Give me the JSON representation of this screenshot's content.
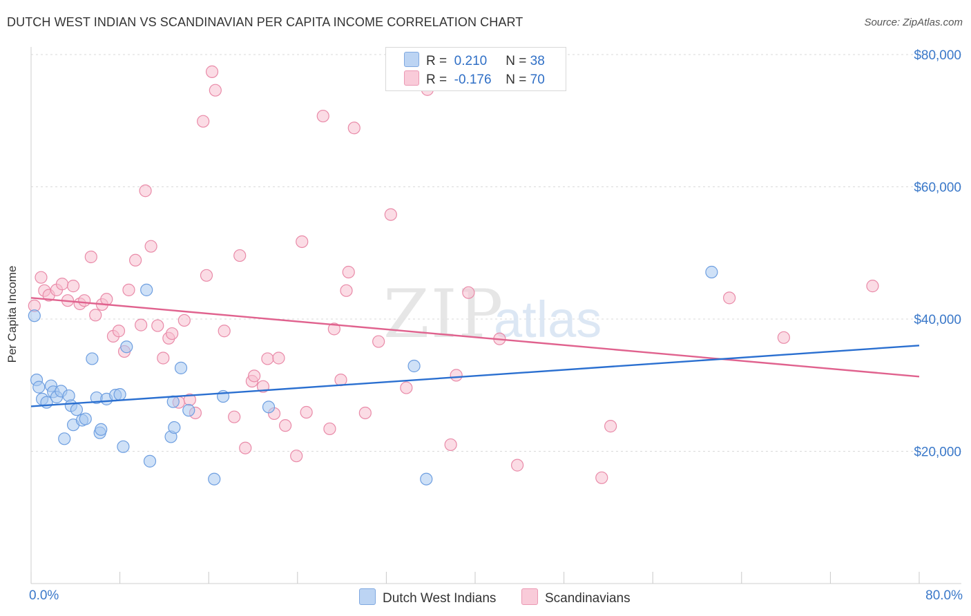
{
  "header": {
    "title": "DUTCH WEST INDIAN VS SCANDINAVIAN PER CAPITA INCOME CORRELATION CHART",
    "source": "Source: ZipAtlas.com"
  },
  "legend_top": {
    "rows": [
      {
        "r_label": "R =",
        "r_value": "0.210",
        "n_label": "N =",
        "n_value": "38"
      },
      {
        "r_label": "R =",
        "r_value": "-0.176",
        "n_label": "N =",
        "n_value": "70"
      }
    ]
  },
  "watermark": {
    "zip": "ZIP",
    "atlas": "atlas"
  },
  "colors": {
    "blue_fill": "#a8c8f0",
    "blue_stroke": "#6d9ee0",
    "blue_line": "#2a6fd0",
    "pink_fill": "#f7bfd0",
    "pink_stroke": "#e98aa8",
    "pink_line": "#e0628e",
    "axis_text": "#3a78c9"
  },
  "chart_data": {
    "type": "scatter",
    "title": "DUTCH WEST INDIAN VS SCANDINAVIAN PER CAPITA INCOME CORRELATION CHART",
    "xlabel": "",
    "ylabel": "Per Capita Income",
    "xlim": [
      0,
      80
    ],
    "ylim": [
      0,
      82000
    ],
    "x_tick_labels": [
      "0.0%",
      "80.0%"
    ],
    "y_ticks": [
      20000,
      40000,
      60000,
      80000
    ],
    "y_tick_labels": [
      "$20,000",
      "$40,000",
      "$60,000",
      "$80,000"
    ],
    "grid": true,
    "legend_position": "top-center",
    "series": [
      {
        "name": "Dutch West Indians",
        "trend": {
          "x": [
            0,
            80
          ],
          "y": [
            26800,
            36000
          ]
        },
        "points": [
          [
            0.3,
            40500
          ],
          [
            0.5,
            30800
          ],
          [
            0.7,
            29700
          ],
          [
            1.0,
            27900
          ],
          [
            1.4,
            27400
          ],
          [
            1.8,
            29900
          ],
          [
            2.0,
            29000
          ],
          [
            2.3,
            28200
          ],
          [
            2.7,
            29100
          ],
          [
            3.0,
            21900
          ],
          [
            3.4,
            28400
          ],
          [
            3.6,
            26900
          ],
          [
            3.8,
            24000
          ],
          [
            4.1,
            26300
          ],
          [
            4.6,
            24700
          ],
          [
            4.9,
            24900
          ],
          [
            5.5,
            34000
          ],
          [
            5.9,
            28100
          ],
          [
            6.2,
            22800
          ],
          [
            6.3,
            23300
          ],
          [
            6.8,
            27900
          ],
          [
            7.6,
            28500
          ],
          [
            8.0,
            28600
          ],
          [
            8.3,
            20700
          ],
          [
            8.6,
            35800
          ],
          [
            10.4,
            44400
          ],
          [
            10.7,
            18500
          ],
          [
            12.6,
            22200
          ],
          [
            12.9,
            23600
          ],
          [
            12.8,
            27500
          ],
          [
            13.5,
            32600
          ],
          [
            14.2,
            26200
          ],
          [
            16.5,
            15800
          ],
          [
            17.3,
            28300
          ],
          [
            21.4,
            26700
          ],
          [
            34.5,
            32900
          ],
          [
            35.6,
            15800
          ],
          [
            61.3,
            47100
          ]
        ]
      },
      {
        "name": "Scandinavians",
        "trend": {
          "x": [
            0,
            80
          ],
          "y": [
            43200,
            31300
          ]
        },
        "points": [
          [
            0.3,
            42000
          ],
          [
            0.9,
            46300
          ],
          [
            1.2,
            44300
          ],
          [
            1.6,
            43600
          ],
          [
            2.3,
            44400
          ],
          [
            2.8,
            45300
          ],
          [
            3.3,
            42800
          ],
          [
            3.8,
            45000
          ],
          [
            4.4,
            42300
          ],
          [
            4.8,
            42800
          ],
          [
            5.4,
            49400
          ],
          [
            5.8,
            40600
          ],
          [
            6.4,
            42200
          ],
          [
            6.8,
            43000
          ],
          [
            7.4,
            37400
          ],
          [
            7.9,
            38200
          ],
          [
            8.4,
            35100
          ],
          [
            8.8,
            44400
          ],
          [
            9.4,
            48900
          ],
          [
            9.9,
            39100
          ],
          [
            10.3,
            59400
          ],
          [
            10.8,
            51000
          ],
          [
            11.4,
            39000
          ],
          [
            11.9,
            34100
          ],
          [
            12.4,
            37100
          ],
          [
            12.7,
            37800
          ],
          [
            13.3,
            27400
          ],
          [
            13.8,
            39800
          ],
          [
            14.3,
            27800
          ],
          [
            14.8,
            25800
          ],
          [
            15.5,
            69900
          ],
          [
            15.8,
            46600
          ],
          [
            16.3,
            77400
          ],
          [
            16.6,
            74600
          ],
          [
            17.4,
            38200
          ],
          [
            18.3,
            25200
          ],
          [
            18.8,
            49600
          ],
          [
            19.3,
            20500
          ],
          [
            19.9,
            30600
          ],
          [
            20.1,
            31400
          ],
          [
            20.9,
            29800
          ],
          [
            21.3,
            34000
          ],
          [
            21.9,
            25700
          ],
          [
            22.3,
            34100
          ],
          [
            22.9,
            23900
          ],
          [
            23.9,
            19300
          ],
          [
            24.4,
            51700
          ],
          [
            24.8,
            25900
          ],
          [
            26.3,
            70700
          ],
          [
            26.9,
            23400
          ],
          [
            27.3,
            38500
          ],
          [
            27.9,
            30800
          ],
          [
            28.4,
            44300
          ],
          [
            28.6,
            47100
          ],
          [
            29.1,
            68900
          ],
          [
            30.1,
            25800
          ],
          [
            31.3,
            36600
          ],
          [
            32.4,
            55800
          ],
          [
            33.8,
            29600
          ],
          [
            35.7,
            74700
          ],
          [
            37.8,
            21000
          ],
          [
            38.3,
            31500
          ],
          [
            39.4,
            44000
          ],
          [
            42.2,
            37000
          ],
          [
            43.8,
            17900
          ],
          [
            51.4,
            16000
          ],
          [
            52.2,
            23800
          ],
          [
            62.9,
            43200
          ],
          [
            67.8,
            37200
          ],
          [
            75.8,
            45000
          ]
        ]
      }
    ]
  },
  "bottom_legend": {
    "items": [
      {
        "label": "Dutch West Indians"
      },
      {
        "label": "Scandinavians"
      }
    ]
  }
}
